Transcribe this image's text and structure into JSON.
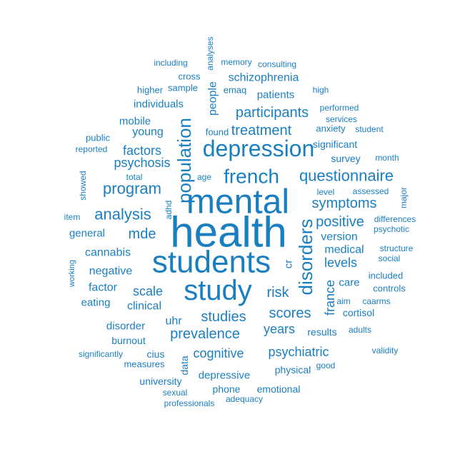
{
  "colors": {
    "word": "#1a7fc1",
    "background": "#ffffff"
  },
  "words": [
    "health",
    "mental",
    "students",
    "study",
    "depression",
    "french",
    "population",
    "disorders",
    "questionnaire",
    "program",
    "analysis",
    "participants",
    "treatment",
    "risk",
    "prevalence",
    "studies",
    "scores",
    "symptoms",
    "positive",
    "cognitive",
    "psychiatric",
    "mde",
    "factors",
    "psychosis",
    "scale",
    "young",
    "version",
    "levels",
    "france",
    "people",
    "schizophrenia",
    "negative",
    "cannabis",
    "clinical",
    "medical",
    "individuals",
    "years",
    "factor",
    "disorder",
    "uhr",
    "patients",
    "general",
    "mobile",
    "care",
    "eating",
    "depressive",
    "results",
    "significant",
    "survey",
    "burnout",
    "cius",
    "cortisol",
    "data",
    "physical",
    "emotional",
    "phone",
    "university",
    "measures",
    "anxiety",
    "emaq",
    "found",
    "cr",
    "included",
    "controls",
    "sample",
    "higher",
    "cross",
    "including",
    "memory",
    "consulting",
    "analyses",
    "high",
    "performed",
    "services",
    "student",
    "public",
    "reported",
    "month",
    "showed",
    "total",
    "age",
    "level",
    "assessed",
    "major",
    "item",
    "adhd",
    "differences",
    "psychotic",
    "structure",
    "social",
    "working",
    "aim",
    "caarms",
    "adults",
    "validity",
    "significantly",
    "good",
    "sexual",
    "professionals",
    "adequacy"
  ]
}
